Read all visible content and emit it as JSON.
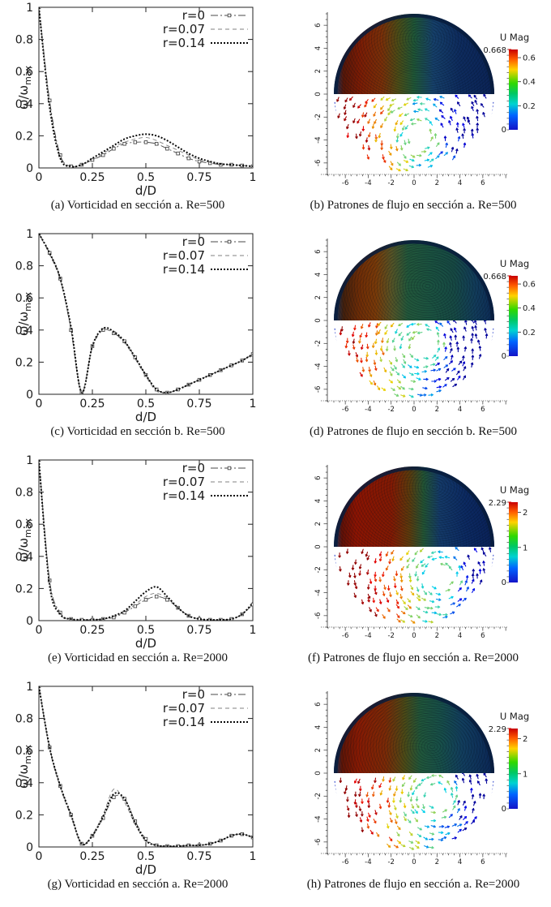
{
  "page": {
    "background": "#ffffff"
  },
  "palette": {
    "colorbar_top_to_bottom": [
      [
        0,
        "#c80000"
      ],
      [
        0.12,
        "#ff5a00"
      ],
      [
        0.25,
        "#ffd200"
      ],
      [
        0.42,
        "#30d800"
      ],
      [
        0.55,
        "#00c864"
      ],
      [
        0.68,
        "#00d2d2"
      ],
      [
        0.82,
        "#0064ff"
      ],
      [
        1,
        "#1414c8"
      ]
    ],
    "axis_color": "#222222",
    "caption_color": "#141414"
  },
  "chart_data": [
    {
      "id": "a",
      "type": "line",
      "caption": "(a) Vorticidad en sección a. Re=500",
      "xlabel": "d/D",
      "ylabel": "ω/ω",
      "ylabel_sub": "max",
      "xlim": [
        0,
        1
      ],
      "ylim": [
        0,
        1
      ],
      "x_ticks": [
        "0",
        "0.25",
        "0.5",
        "0.75",
        "1"
      ],
      "y_ticks": [
        "0",
        "0.2",
        "0.4",
        "0.6",
        "0.8",
        "1"
      ],
      "legend_position": "top-right",
      "grid": false,
      "x": [
        0,
        0.05,
        0.1,
        0.15,
        0.2,
        0.25,
        0.3,
        0.35,
        0.4,
        0.45,
        0.5,
        0.55,
        0.6,
        0.65,
        0.7,
        0.75,
        0.8,
        0.85,
        0.9,
        0.95,
        1
      ],
      "series": [
        {
          "name": "r=0",
          "style": "dashdot-squares",
          "values": [
            1.0,
            0.42,
            0.08,
            0.01,
            0.02,
            0.05,
            0.08,
            0.12,
            0.15,
            0.16,
            0.16,
            0.15,
            0.12,
            0.09,
            0.06,
            0.04,
            0.03,
            0.02,
            0.02,
            0.015,
            0.01
          ]
        },
        {
          "name": "r=0.07",
          "style": "dashed",
          "values": [
            1.0,
            0.4,
            0.07,
            0.01,
            0.02,
            0.05,
            0.09,
            0.13,
            0.16,
            0.18,
            0.19,
            0.17,
            0.14,
            0.11,
            0.08,
            0.05,
            0.035,
            0.025,
            0.02,
            0.015,
            0.01
          ]
        },
        {
          "name": "r=0.14",
          "style": "bold-dotted",
          "values": [
            1.0,
            0.38,
            0.06,
            0.01,
            0.02,
            0.06,
            0.1,
            0.14,
            0.18,
            0.2,
            0.21,
            0.2,
            0.17,
            0.13,
            0.09,
            0.06,
            0.04,
            0.025,
            0.02,
            0.015,
            0.01
          ]
        }
      ]
    },
    {
      "id": "b",
      "type": "vector-field",
      "caption": "(b) Patrones de flujo en sección a. Re=500",
      "description": "Circular section: top half streamlines colored by velocity magnitude (high red at upper-left, low dark blue at right); bottom half velocity vectors colored by magnitude (red left to blue right).",
      "axis_range": [
        -7,
        7
      ],
      "x_ticks": [
        "-6",
        "-4",
        "-2",
        "0",
        "2",
        "4",
        "6"
      ],
      "y_ticks": [
        "6",
        "4",
        "2",
        "0",
        "-2",
        "-4",
        "-6"
      ],
      "colorbar": {
        "title": "U Mag",
        "max": 0.668,
        "max_label": "0.668",
        "min_label": "0",
        "ticks": [
          {
            "value": 0.6,
            "label": "0.6"
          },
          {
            "value": 0.4,
            "label": "0.4"
          },
          {
            "value": 0.2,
            "label": "0.2"
          }
        ]
      },
      "vortex_top": [
        0.7,
        4.8
      ],
      "vortex_bottom": [
        0.5,
        -3.8
      ],
      "arrow_color_bias": 1.12,
      "top_gradient": [
        [
          0,
          "#15386a"
        ],
        [
          0.06,
          "#571708"
        ],
        [
          0.16,
          "#7c1c04"
        ],
        [
          0.3,
          "#7a3008"
        ],
        [
          0.4,
          "#4c4c16"
        ],
        [
          0.5,
          "#1f5636"
        ],
        [
          0.62,
          "#16406a"
        ],
        [
          0.78,
          "#0e2c5e"
        ],
        [
          1,
          "#0b2356"
        ]
      ]
    },
    {
      "id": "c",
      "type": "line",
      "caption": "(c) Vorticidad en sección b. Re=500",
      "xlabel": "d/D",
      "ylabel": "ω/ω",
      "ylabel_sub": "max",
      "xlim": [
        0,
        1
      ],
      "ylim": [
        0,
        1
      ],
      "x_ticks": [
        "0",
        "0.25",
        "0.5",
        "0.75",
        "1"
      ],
      "y_ticks": [
        "0",
        "0.2",
        "0.4",
        "0.6",
        "0.8",
        "1"
      ],
      "legend_position": "top-right",
      "grid": false,
      "x": [
        0,
        0.05,
        0.1,
        0.15,
        0.2,
        0.25,
        0.3,
        0.35,
        0.4,
        0.45,
        0.5,
        0.55,
        0.6,
        0.65,
        0.7,
        0.75,
        0.8,
        0.85,
        0.9,
        0.95,
        1
      ],
      "series": [
        {
          "name": "r=0",
          "style": "dashdot-squares",
          "values": [
            1.0,
            0.88,
            0.72,
            0.4,
            0.01,
            0.3,
            0.4,
            0.38,
            0.33,
            0.23,
            0.12,
            0.03,
            0.01,
            0.03,
            0.06,
            0.09,
            0.12,
            0.15,
            0.18,
            0.21,
            0.25
          ]
        },
        {
          "name": "r=0.07",
          "style": "dashed",
          "values": [
            1.0,
            0.87,
            0.71,
            0.41,
            0.02,
            0.29,
            0.4,
            0.38,
            0.32,
            0.22,
            0.11,
            0.02,
            0.01,
            0.03,
            0.06,
            0.09,
            0.12,
            0.15,
            0.18,
            0.21,
            0.24
          ]
        },
        {
          "name": "r=0.14",
          "style": "bold-dotted",
          "values": [
            1.0,
            0.88,
            0.72,
            0.42,
            0.01,
            0.3,
            0.41,
            0.39,
            0.33,
            0.23,
            0.12,
            0.03,
            0.01,
            0.03,
            0.06,
            0.09,
            0.12,
            0.15,
            0.18,
            0.21,
            0.25
          ]
        }
      ]
    },
    {
      "id": "d",
      "type": "vector-field",
      "caption": "(d) Patrones de flujo en sección b. Re=500",
      "description": "Circular section: top half streamlines mostly dark green with red band at left, vortex right of center; bottom half velocity vectors spread over whole half (red left, green center, blue rim).",
      "axis_range": [
        -7,
        7
      ],
      "x_ticks": [
        "-6",
        "-4",
        "-2",
        "0",
        "2",
        "4",
        "6"
      ],
      "y_ticks": [
        "6",
        "4",
        "2",
        "0",
        "-2",
        "-4",
        "-6"
      ],
      "colorbar": {
        "title": "U Mag",
        "max": 0.668,
        "max_label": "0.668",
        "min_label": "0",
        "ticks": [
          {
            "value": 0.6,
            "label": "0.6"
          },
          {
            "value": 0.4,
            "label": "0.4"
          },
          {
            "value": 0.2,
            "label": "0.2"
          }
        ]
      },
      "vortex_top": [
        1.2,
        3.0
      ],
      "vortex_bottom": [
        0.8,
        -2.2
      ],
      "arrow_color_bias": 1.05,
      "top_gradient": [
        [
          0,
          "#14386a"
        ],
        [
          0.06,
          "#43200c"
        ],
        [
          0.16,
          "#6f2d06"
        ],
        [
          0.26,
          "#7a3a08"
        ],
        [
          0.36,
          "#565426"
        ],
        [
          0.46,
          "#22573a"
        ],
        [
          0.6,
          "#1b5340"
        ],
        [
          0.75,
          "#174a44"
        ],
        [
          0.88,
          "#123c5a"
        ],
        [
          1,
          "#0c2a56"
        ]
      ]
    },
    {
      "id": "e",
      "type": "line",
      "caption": "(e) Vorticidad en sección a. Re=2000",
      "xlabel": "d/D",
      "ylabel": "ω/ω",
      "ylabel_sub": "max",
      "xlim": [
        0,
        1
      ],
      "ylim": [
        0,
        1
      ],
      "x_ticks": [
        "0",
        "0.25",
        "0.5",
        "0.75",
        "1"
      ],
      "y_ticks": [
        "0",
        "0.2",
        "0.4",
        "0.6",
        "0.8",
        "1"
      ],
      "legend_position": "top-right",
      "grid": false,
      "x": [
        0,
        0.05,
        0.1,
        0.15,
        0.2,
        0.25,
        0.3,
        0.35,
        0.4,
        0.45,
        0.5,
        0.55,
        0.6,
        0.65,
        0.7,
        0.75,
        0.8,
        0.85,
        0.9,
        0.95,
        1
      ],
      "series": [
        {
          "name": "r=0",
          "style": "dashdot-squares",
          "values": [
            1.0,
            0.25,
            0.05,
            0.01,
            0.005,
            0.005,
            0.01,
            0.02,
            0.05,
            0.09,
            0.13,
            0.15,
            0.13,
            0.08,
            0.03,
            0.01,
            0.005,
            0.005,
            0.01,
            0.04,
            0.1
          ]
        },
        {
          "name": "r=0.07",
          "style": "dashed",
          "values": [
            1.0,
            0.24,
            0.04,
            0.01,
            0.005,
            0.005,
            0.01,
            0.025,
            0.055,
            0.1,
            0.15,
            0.17,
            0.14,
            0.08,
            0.03,
            0.01,
            0.005,
            0.005,
            0.01,
            0.04,
            0.1
          ]
        },
        {
          "name": "r=0.14",
          "style": "bold-dotted",
          "values": [
            1.0,
            0.22,
            0.04,
            0.01,
            0.005,
            0.005,
            0.01,
            0.03,
            0.06,
            0.12,
            0.18,
            0.21,
            0.15,
            0.08,
            0.03,
            0.01,
            0.005,
            0.005,
            0.01,
            0.04,
            0.11
          ]
        }
      ]
    },
    {
      "id": "f",
      "type": "vector-field",
      "caption": "(f) Patrones de flujo en sección a. Re=2000",
      "description": "Circular section: top half large dark-red high-speed region on left half, dark blue right, vortex upper right; bottom half dense red vectors left, blue/cyan vectors right.",
      "axis_range": [
        -7,
        7
      ],
      "x_ticks": [
        "-6",
        "-4",
        "-2",
        "0",
        "2",
        "4",
        "6"
      ],
      "y_ticks": [
        "6",
        "4",
        "2",
        "0",
        "-2",
        "-4",
        "-6"
      ],
      "colorbar": {
        "title": "U Mag",
        "max": 2.29,
        "max_label": "2.29",
        "min_label": "0",
        "ticks": [
          {
            "value": 2,
            "label": "2"
          },
          {
            "value": 1,
            "label": "1"
          }
        ]
      },
      "vortex_top": [
        1.8,
        5.2
      ],
      "vortex_bottom": [
        2.2,
        -2.6
      ],
      "arrow_color_bias": 1.25,
      "top_gradient": [
        [
          0,
          "#183c6e"
        ],
        [
          0.05,
          "#611106"
        ],
        [
          0.14,
          "#8c1402"
        ],
        [
          0.36,
          "#821a03"
        ],
        [
          0.47,
          "#5c3a0c"
        ],
        [
          0.56,
          "#225434"
        ],
        [
          0.66,
          "#143a68"
        ],
        [
          0.82,
          "#0c2a62"
        ],
        [
          1,
          "#0a2158"
        ]
      ]
    },
    {
      "id": "g",
      "type": "line",
      "caption": "(g) Vorticidad en sección a. Re=2000",
      "xlabel": "d/D",
      "ylabel": "ω/ω",
      "ylabel_sub": "max",
      "xlim": [
        0,
        1
      ],
      "ylim": [
        0,
        1
      ],
      "x_ticks": [
        "0",
        "0.25",
        "0.5",
        "0.75",
        "1"
      ],
      "y_ticks": [
        "0",
        "0.2",
        "0.4",
        "0.6",
        "0.8",
        "1"
      ],
      "legend_position": "top-right",
      "grid": false,
      "x": [
        0,
        0.05,
        0.1,
        0.15,
        0.2,
        0.25,
        0.3,
        0.35,
        0.4,
        0.45,
        0.5,
        0.55,
        0.6,
        0.65,
        0.7,
        0.75,
        0.8,
        0.85,
        0.9,
        0.95,
        1
      ],
      "series": [
        {
          "name": "r=0",
          "style": "dashdot-squares",
          "values": [
            1.0,
            0.62,
            0.38,
            0.2,
            0.02,
            0.07,
            0.18,
            0.31,
            0.3,
            0.16,
            0.05,
            0.01,
            0.005,
            0.005,
            0.01,
            0.01,
            0.02,
            0.04,
            0.07,
            0.08,
            0.06
          ]
        },
        {
          "name": "r=0.07",
          "style": "dashed",
          "values": [
            1.0,
            0.61,
            0.37,
            0.19,
            0.02,
            0.08,
            0.2,
            0.36,
            0.28,
            0.14,
            0.04,
            0.01,
            0.005,
            0.005,
            0.01,
            0.01,
            0.02,
            0.04,
            0.07,
            0.08,
            0.06
          ]
        },
        {
          "name": "r=0.14",
          "style": "bold-dotted",
          "values": [
            1.0,
            0.62,
            0.38,
            0.2,
            0.02,
            0.07,
            0.19,
            0.33,
            0.3,
            0.15,
            0.04,
            0.01,
            0.005,
            0.005,
            0.01,
            0.01,
            0.02,
            0.04,
            0.07,
            0.08,
            0.06
          ]
        }
      ]
    },
    {
      "id": "h",
      "type": "vector-field",
      "caption": "(h) Patrones de flujo en sección a. Re=2000",
      "description": "Circular section: top half red band upper-left, teal/green right with vortex near center-right at low height; bottom half vectors in circular swirl, red left, cyan/green center-right.",
      "axis_range": [
        -7,
        7
      ],
      "x_ticks": [
        "-6",
        "-4",
        "-2",
        "0",
        "2",
        "4",
        "6"
      ],
      "y_ticks": [
        "6",
        "4",
        "2",
        "0",
        "-2",
        "-4",
        "-6"
      ],
      "colorbar": {
        "title": "U Mag",
        "max": 2.29,
        "max_label": "2.29",
        "min_label": "0",
        "ticks": [
          {
            "value": 2,
            "label": "2"
          },
          {
            "value": 1,
            "label": "1"
          }
        ]
      },
      "vortex_top": [
        1.6,
        2.3
      ],
      "vortex_bottom": [
        1.9,
        -2.1
      ],
      "arrow_color_bias": 1.18,
      "top_gradient": [
        [
          0,
          "#16386a"
        ],
        [
          0.05,
          "#5e1506"
        ],
        [
          0.15,
          "#871a03"
        ],
        [
          0.32,
          "#7c2a06"
        ],
        [
          0.44,
          "#4c4a16"
        ],
        [
          0.54,
          "#20563a"
        ],
        [
          0.66,
          "#185048"
        ],
        [
          0.8,
          "#123e5e"
        ],
        [
          1,
          "#0b2656"
        ]
      ]
    }
  ]
}
